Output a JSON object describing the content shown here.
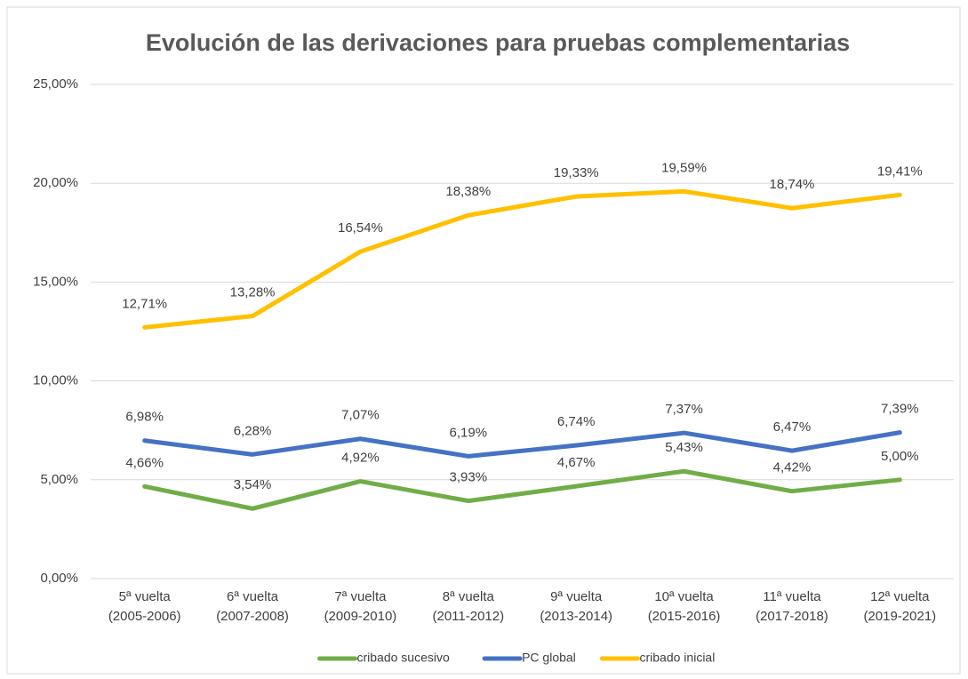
{
  "chart_data": {
    "type": "line",
    "title": "Evolución de las derivaciones para pruebas complementarias",
    "categories": [
      "5ª vuelta (2005-2006)",
      "6ª vuelta (2007-2008)",
      "7ª vuelta (2009-2010)",
      "8ª vuelta (2011-2012)",
      "9ª vuelta (2013-2014)",
      "10ª vuelta (2015-2016)",
      "11ª vuelta (2017-2018)",
      "12ª vuelta (2019-2021)"
    ],
    "series": [
      {
        "name": "cribado sucesivo",
        "color": "#70ad47",
        "values": [
          4.66,
          3.54,
          4.92,
          3.93,
          4.67,
          5.43,
          4.42,
          5.0
        ],
        "value_labels": [
          "4,66%",
          "3,54%",
          "4,92%",
          "3,93%",
          "4,67%",
          "5,43%",
          "4,42%",
          "5,00%"
        ]
      },
      {
        "name": "PC global",
        "color": "#4472c4",
        "values": [
          6.98,
          6.28,
          7.07,
          6.19,
          6.74,
          7.37,
          6.47,
          7.39
        ],
        "value_labels": [
          "6,98%",
          "6,28%",
          "7,07%",
          "6,19%",
          "6,74%",
          "7,37%",
          "6,47%",
          "7,39%"
        ]
      },
      {
        "name": "cribado inicial",
        "color": "#ffc000",
        "values": [
          12.71,
          13.28,
          16.54,
          18.38,
          19.33,
          19.59,
          18.74,
          19.41
        ],
        "value_labels": [
          "12,71%",
          "13,28%",
          "16,54%",
          "18,38%",
          "19,33%",
          "19,59%",
          "18,74%",
          "19,41%"
        ]
      }
    ],
    "ylim": [
      0,
      25
    ],
    "yticks": [
      {
        "value": 0,
        "label": "0,00%"
      },
      {
        "value": 5,
        "label": "5,00%"
      },
      {
        "value": 10,
        "label": "10,00%"
      },
      {
        "value": 15,
        "label": "15,00%"
      },
      {
        "value": 20,
        "label": "20,00%"
      },
      {
        "value": 25,
        "label": "25,00%"
      }
    ],
    "grid": true,
    "legend": "bottom"
  }
}
